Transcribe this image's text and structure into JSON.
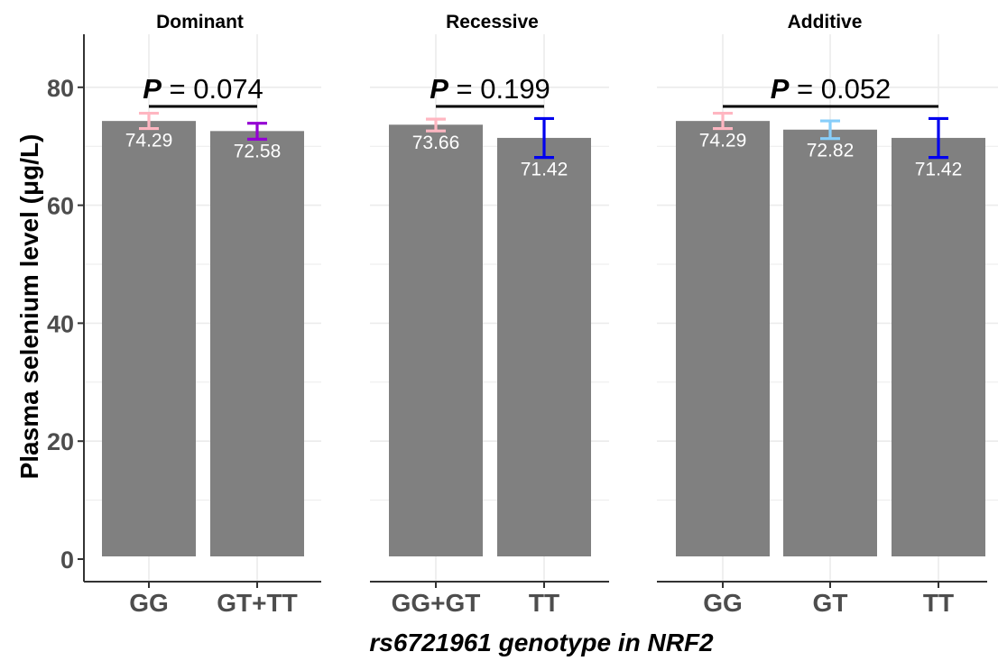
{
  "chart_data": [
    {
      "type": "bar",
      "title": "Dominant",
      "categories": [
        "GG",
        "GT+TT"
      ],
      "values": [
        74.29,
        72.58
      ],
      "value_labels": [
        "74.29",
        "72.58"
      ],
      "error_bars": [
        [
          73.0,
          75.6
        ],
        [
          71.2,
          73.9
        ]
      ],
      "error_colors": [
        "#ffb6c1",
        "#9400d3"
      ],
      "p_value": {
        "symbol": "P",
        "text": "= 0.074"
      },
      "ylim": [
        0,
        89
      ]
    },
    {
      "type": "bar",
      "title": "Recessive",
      "categories": [
        "GG+GT",
        "TT"
      ],
      "values": [
        73.66,
        71.42
      ],
      "value_labels": [
        "73.66",
        "71.42"
      ],
      "error_bars": [
        [
          72.6,
          74.6
        ],
        [
          68.1,
          74.7
        ]
      ],
      "error_colors": [
        "#ffb6c1",
        "#0000ee"
      ],
      "p_value": {
        "symbol": "P",
        "text": "= 0.199"
      },
      "ylim": [
        0,
        89
      ]
    },
    {
      "type": "bar",
      "title": "Additive",
      "categories": [
        "GG",
        "GT",
        "TT"
      ],
      "values": [
        74.29,
        72.82,
        71.42
      ],
      "value_labels": [
        "74.29",
        "72.82",
        "71.42"
      ],
      "error_bars": [
        [
          73.0,
          75.6
        ],
        [
          71.3,
          74.3
        ],
        [
          68.1,
          74.7
        ]
      ],
      "error_colors": [
        "#ffb6c1",
        "#87cefa",
        "#0000ee"
      ],
      "p_value": {
        "symbol": "P",
        "text": "= 0.052"
      },
      "ylim": [
        0,
        89
      ]
    }
  ],
  "axes": {
    "ylabel": "Plasma selenium level (μg/L)",
    "xlabel": "rs6721961 genotype in NRF2",
    "yticks": [
      0,
      20,
      40,
      60,
      80
    ]
  },
  "colors": {
    "bar": "#808080",
    "grid": "#ebebeb",
    "axis": "#333333"
  }
}
